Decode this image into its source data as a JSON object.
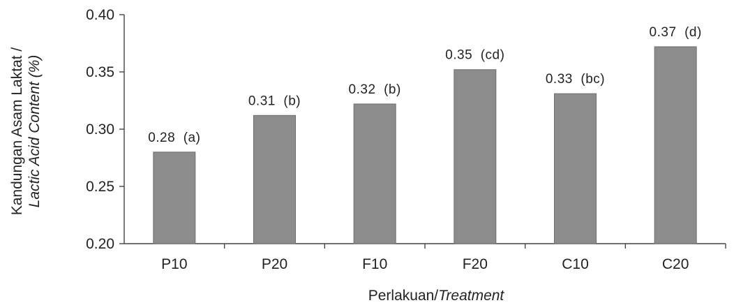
{
  "chart_data": {
    "type": "bar",
    "categories": [
      "P10",
      "P20",
      "F10",
      "F20",
      "C10",
      "C20"
    ],
    "values": [
      0.28,
      0.312,
      0.322,
      0.352,
      0.331,
      0.372
    ],
    "data_labels": [
      "0.28  (a)",
      "0.31  (b)",
      "0.32  (b)",
      "0.35  (cd)",
      "0.33  (bc)",
      "0.37  (d)"
    ],
    "ylim": [
      0.2,
      0.4
    ],
    "yticks": [
      "0.20",
      "0.25",
      "0.30",
      "0.35",
      "0.40"
    ],
    "xlabel": {
      "plain": "Perlakuan/",
      "italic": "Treatment"
    },
    "ylabel": {
      "line1": "Kandungan Asam Laktat /",
      "line2": "Lactic Acid Content (%)"
    },
    "grid": false,
    "bar_color": "#8c8c8c"
  }
}
